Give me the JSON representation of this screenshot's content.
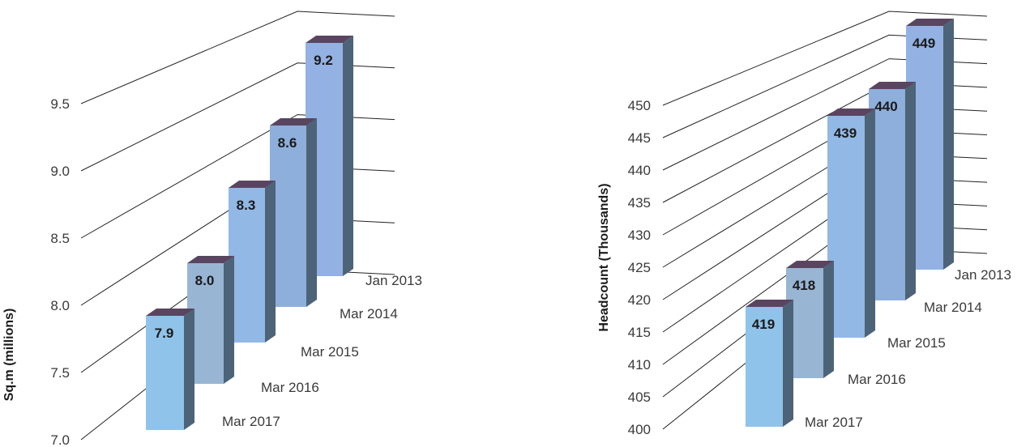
{
  "chart_data": [
    {
      "type": "bar",
      "ylabel": "Sq.m (millions)",
      "ylim": [
        7.0,
        9.5
      ],
      "yticks": [
        "7.0",
        "7.5",
        "8.0",
        "8.5",
        "9.0",
        "9.5"
      ],
      "categories": [
        "Mar 2017",
        "Mar 2016",
        "Mar 2015",
        "Mar 2014",
        "Jan 2013"
      ],
      "values": [
        7.9,
        8.0,
        8.3,
        8.6,
        9.2
      ],
      "value_labels": [
        "7.9",
        "8.0",
        "8.3",
        "8.6",
        "9.2"
      ],
      "bar_colors": [
        "#8fc3ea",
        "#98b5d3",
        "#92b8e6",
        "#8eaedc",
        "#93b2e3"
      ],
      "side_color": "#4d6377",
      "top_color": "#5a4560",
      "grid": true
    },
    {
      "type": "bar",
      "ylabel": "Headcount (Thousands)",
      "ylim": [
        400,
        450
      ],
      "yticks": [
        "400",
        "405",
        "410",
        "415",
        "420",
        "425",
        "430",
        "435",
        "440",
        "445",
        "450"
      ],
      "categories": [
        "Mar 2017",
        "Mar 2016",
        "Mar 2015",
        "Mar 2014",
        "Jan 2013"
      ],
      "values": [
        419,
        418,
        439,
        440,
        449
      ],
      "value_labels": [
        "419",
        "418",
        "439",
        "440",
        "449"
      ],
      "bar_colors": [
        "#8fc3ea",
        "#98b5d3",
        "#92b8e6",
        "#8eaedc",
        "#93b2e3"
      ],
      "side_color": "#4d6377",
      "top_color": "#5a4560",
      "grid": true
    }
  ]
}
